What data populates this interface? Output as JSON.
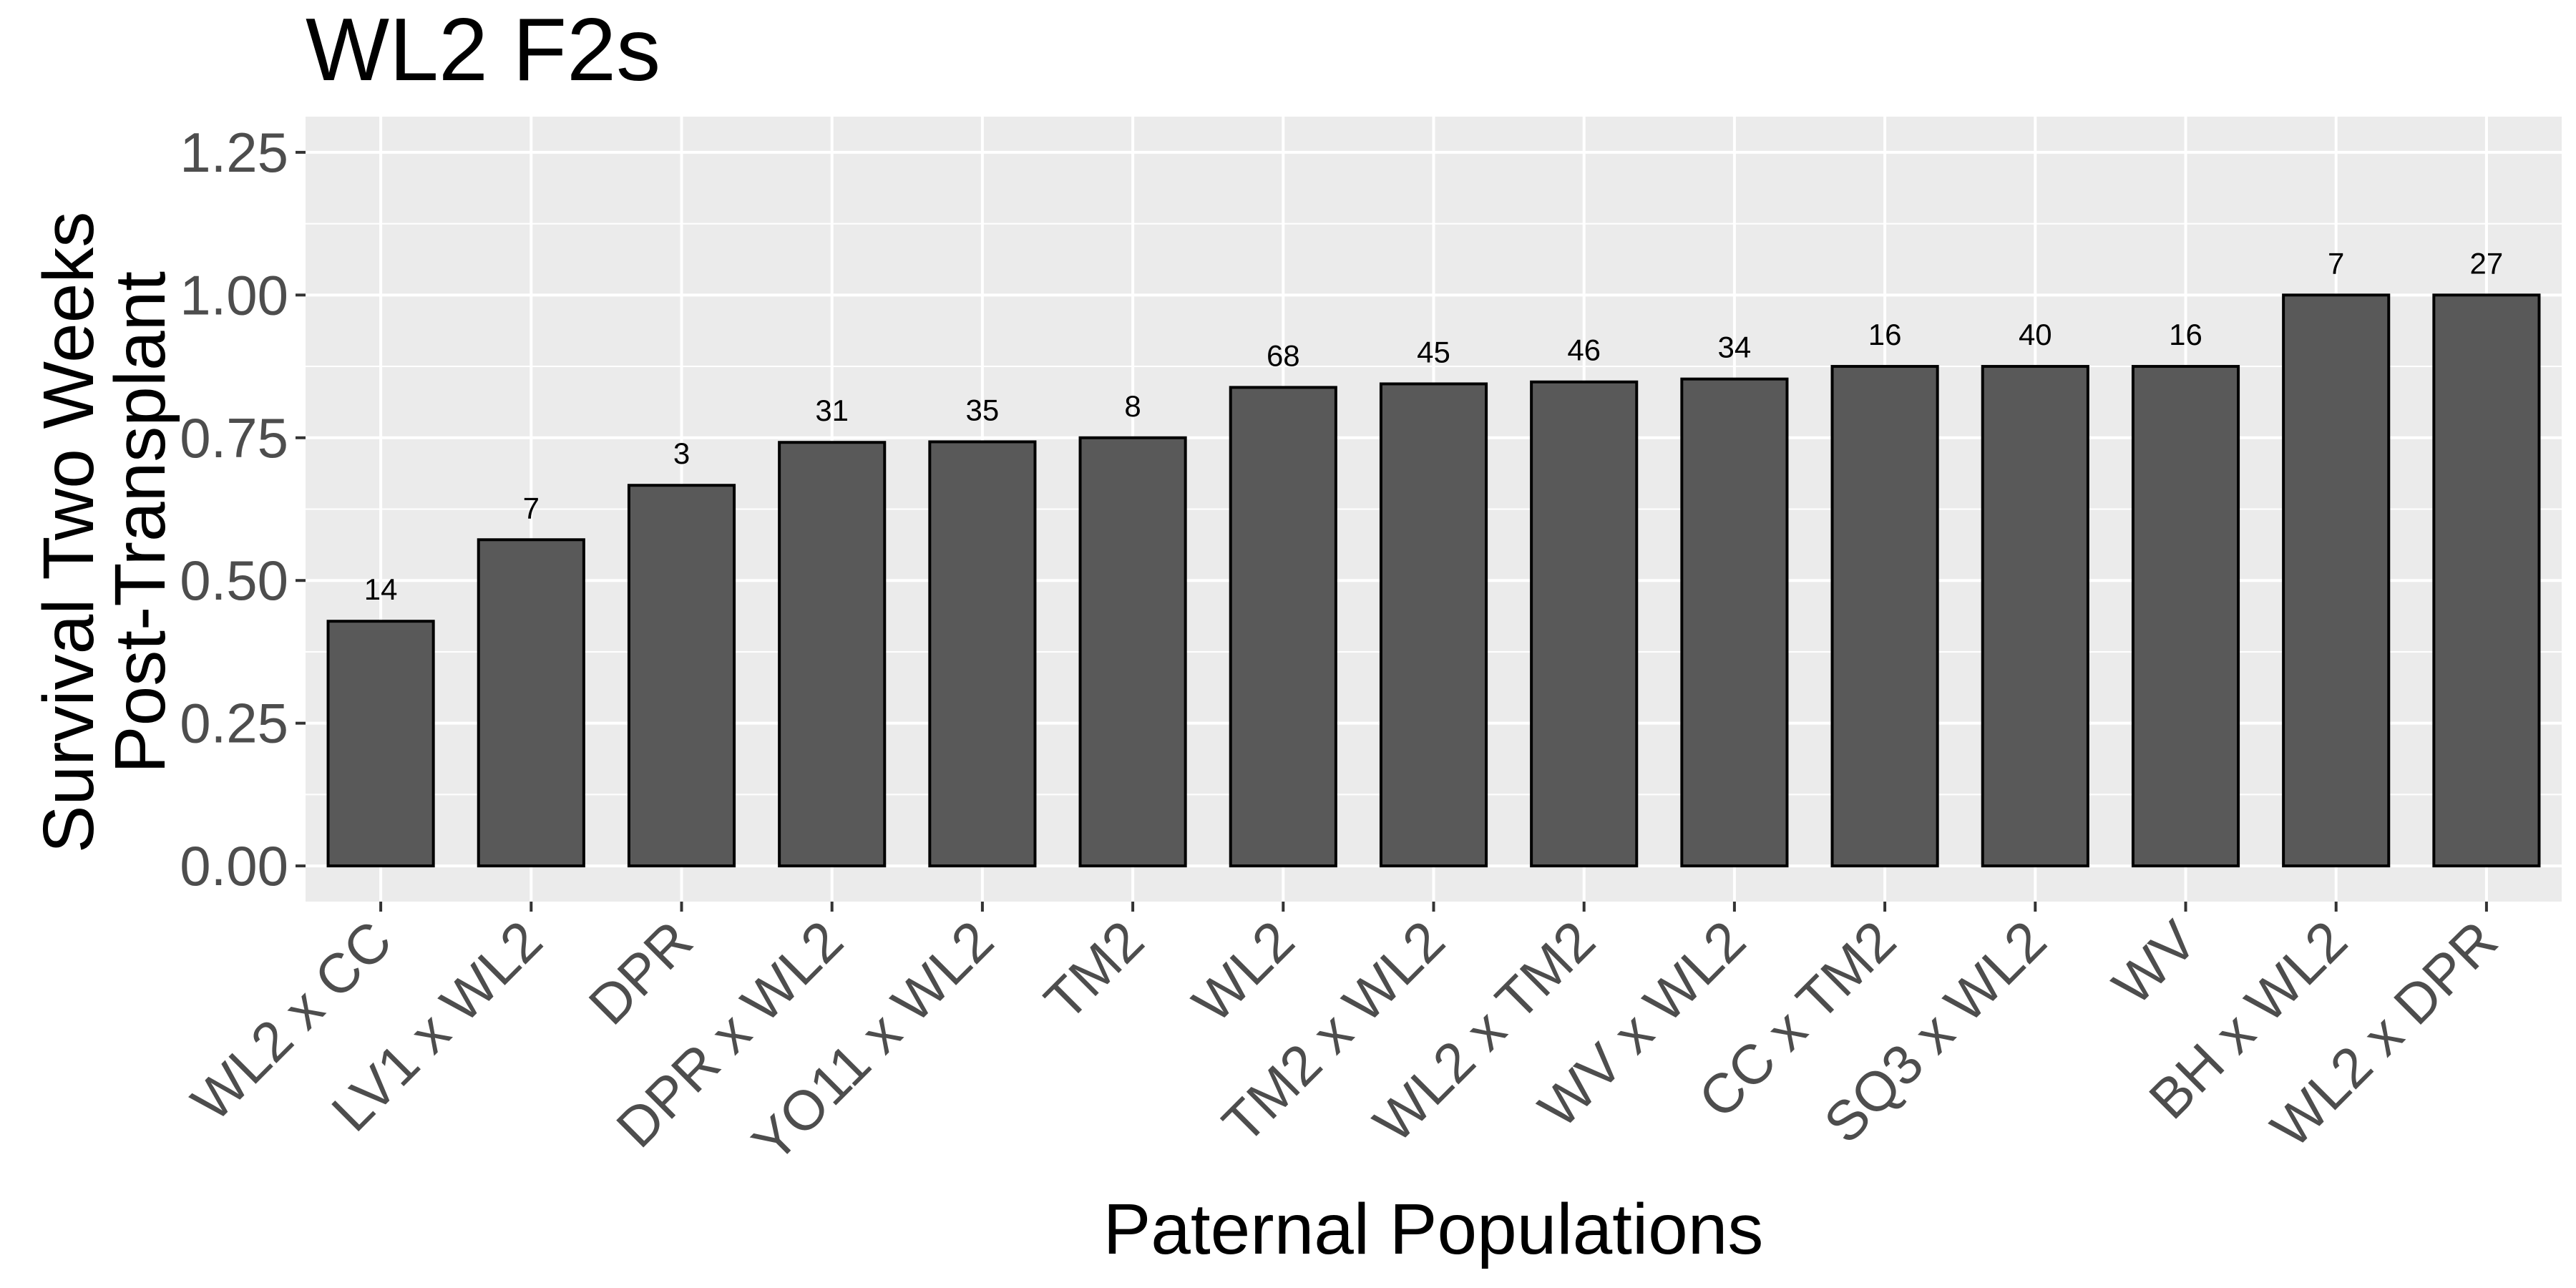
{
  "chart_data": {
    "type": "bar",
    "title": "WL2 F2s",
    "xlabel": "Paternal Populations",
    "ylabel_lines": [
      "Survival Two Weeks",
      "Post-Transplant"
    ],
    "categories": [
      "WL2 x CC",
      "LV1 x WL2",
      "DPR",
      "DPR x WL2",
      "YO11 x WL2",
      "TM2",
      "WL2",
      "TM2 x WL2",
      "WL2 x TM2",
      "WV x WL2",
      "CC x TM2",
      "SQ3 x WL2",
      "WV",
      "BH x WL2",
      "WL2 x DPR"
    ],
    "values": [
      0.4286,
      0.5714,
      0.6667,
      0.7419,
      0.7429,
      0.75,
      0.8382,
      0.8444,
      0.8478,
      0.8529,
      0.875,
      0.875,
      0.875,
      1.0,
      1.0
    ],
    "labels": [
      "14",
      "7",
      "3",
      "31",
      "35",
      "8",
      "68",
      "45",
      "46",
      "34",
      "16",
      "40",
      "16",
      "7",
      "27"
    ],
    "ylim": [
      -0.0625,
      1.3125
    ],
    "yticks": [
      0,
      0.25,
      0.5,
      0.75,
      1.0,
      1.25
    ],
    "ytick_labels": [
      "0.00",
      "0.25",
      "0.50",
      "0.75",
      "1.00",
      "1.25"
    ],
    "grid": true,
    "bar_color": "#595959",
    "panel_color": "#ebebeb"
  }
}
